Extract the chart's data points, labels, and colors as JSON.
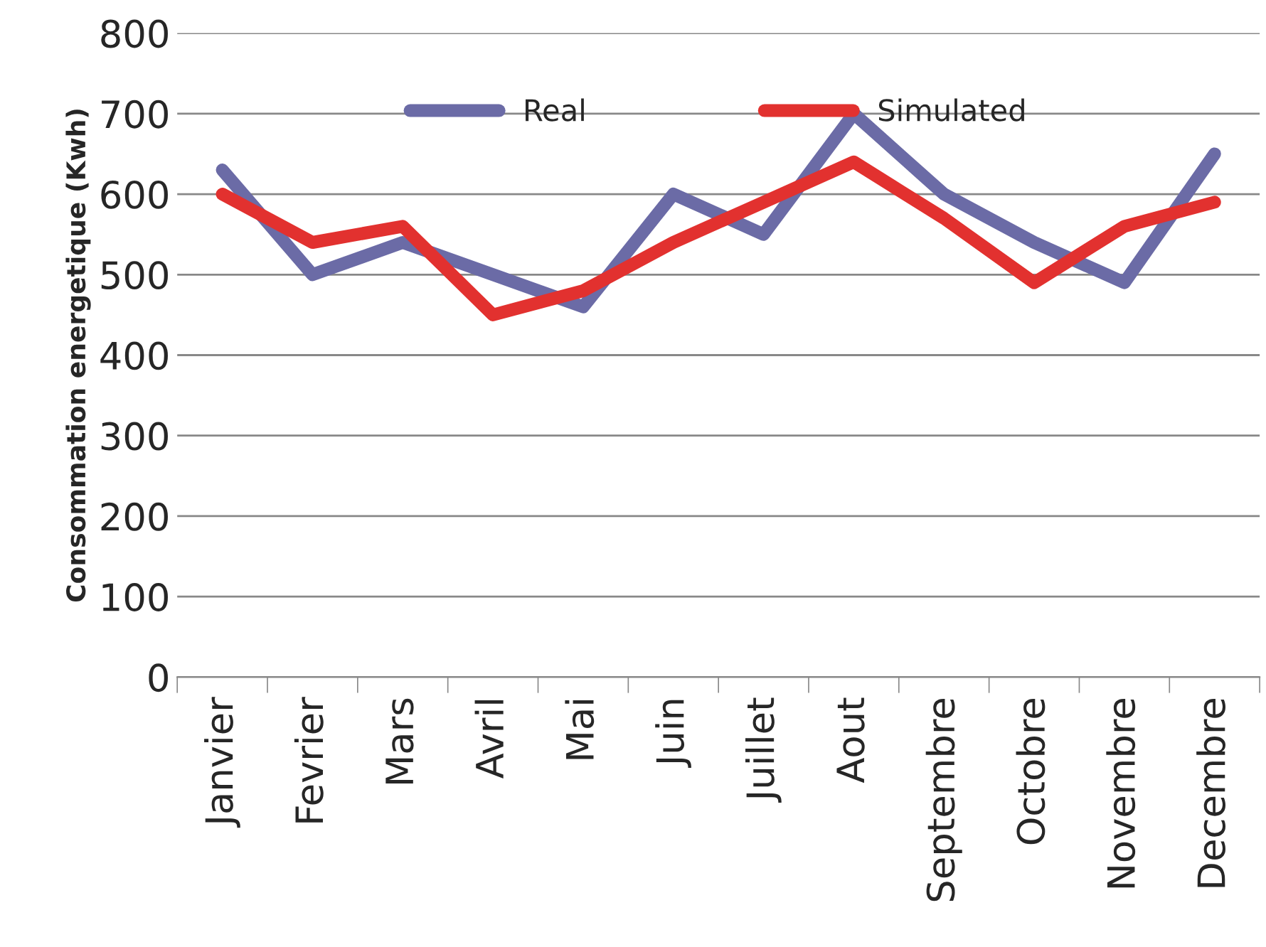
{
  "chart_data": {
    "type": "line",
    "ylabel": "Consommation energetique (Kwh)",
    "categories": [
      "Janvier",
      "Fevrier",
      "Mars",
      "Avril",
      "Mai",
      "Juin",
      "Juillet",
      "Aout",
      "Septembre",
      "Octobre",
      "Novembre",
      "Decembre"
    ],
    "series": [
      {
        "name": "Real",
        "color": "#6b6ba6",
        "values": [
          630,
          500,
          540,
          500,
          460,
          600,
          550,
          700,
          600,
          540,
          490,
          650
        ]
      },
      {
        "name": "Simulated",
        "color": "#e2312f",
        "values": [
          600,
          540,
          560,
          450,
          480,
          540,
          590,
          640,
          570,
          490,
          560,
          590
        ]
      }
    ],
    "ylim": [
      0,
      800
    ],
    "yticks": [
      0,
      100,
      200,
      300,
      400,
      500,
      600,
      700,
      800
    ],
    "grid": "y",
    "legend": "top",
    "marker": "none",
    "line_style": "solid"
  }
}
